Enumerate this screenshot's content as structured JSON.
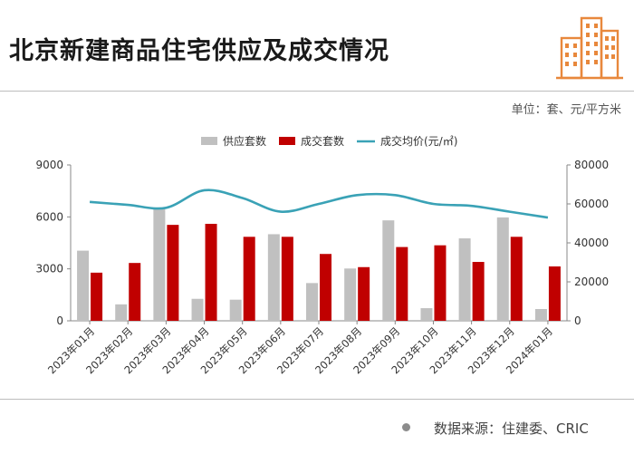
{
  "header": {
    "title": "北京新建商品住宅供应及成交情况",
    "unit": "单位：套、元/平方米"
  },
  "footer": {
    "source": "数据来源：住建委、CRIC"
  },
  "colors": {
    "supply": "#c0c0c0",
    "deal": "#c00000",
    "price": "#3aa2b6",
    "logo": "#e8883c"
  },
  "logo_icon": "building-icon",
  "chart_data": {
    "type": "bar",
    "categories": [
      "2023年01月",
      "2023年02月",
      "2023年03月",
      "2023年04月",
      "2023年05月",
      "2023年06月",
      "2023年07月",
      "2023年08月",
      "2023年09月",
      "2023年10月",
      "2023年11月",
      "2023年12月",
      "2024年01月"
    ],
    "series": [
      {
        "name": "供应套数",
        "type": "bar",
        "axis": "left",
        "values": [
          4050,
          950,
          6500,
          1270,
          1220,
          5000,
          2180,
          3020,
          5800,
          730,
          4760,
          5970,
          680
        ]
      },
      {
        "name": "成交套数",
        "type": "bar",
        "axis": "left",
        "values": [
          2780,
          3340,
          5540,
          5600,
          4850,
          4850,
          3860,
          3100,
          4260,
          4360,
          3400,
          4850,
          3140
        ]
      },
      {
        "name": "成交均价(元/㎡)",
        "type": "line",
        "axis": "right",
        "values": [
          61000,
          59500,
          58000,
          67000,
          63000,
          56000,
          60000,
          64500,
          64500,
          60000,
          59000,
          56000,
          53000
        ]
      }
    ],
    "y_left": {
      "ticks": [
        0,
        3000,
        6000,
        9000
      ],
      "ylim": [
        0,
        9000
      ]
    },
    "y_right": {
      "ticks": [
        0,
        20000,
        40000,
        60000,
        80000
      ],
      "ylim": [
        0,
        80000
      ]
    },
    "legend_position": "top"
  }
}
